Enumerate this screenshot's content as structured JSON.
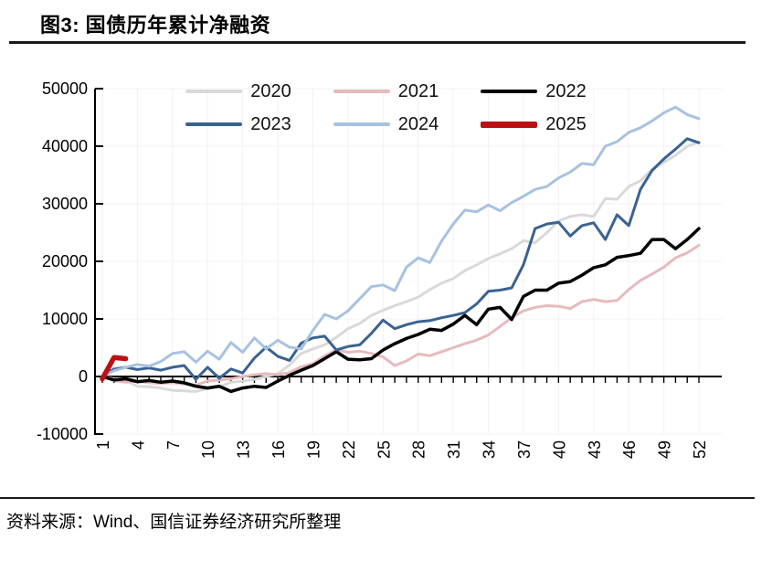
{
  "header": {
    "title": "图3: 国债历年累计净融资"
  },
  "footer": {
    "source": "资料来源：Wind、国信证券经济研究所整理"
  },
  "legend": {
    "columns": 3,
    "position": "top-center",
    "rows": 2
  },
  "chart_data": {
    "type": "line",
    "title": "国债历年累计净融资",
    "xlabel": "",
    "ylabel": "",
    "grid": "faint",
    "x_axis": {
      "weeks": 52,
      "tick_labels": [
        1,
        4,
        7,
        10,
        13,
        16,
        19,
        22,
        25,
        28,
        31,
        34,
        37,
        40,
        43,
        46,
        49,
        52
      ],
      "crosses_at": 0
    },
    "y_axis": {
      "ticks": [
        50000,
        40000,
        30000,
        20000,
        10000,
        0,
        -10000
      ],
      "min": -10000,
      "max": 50000
    },
    "series": [
      {
        "name": "2020",
        "color": "#d9d9d9",
        "line_width": 3,
        "legend_thickness": 3.5,
        "values": [
          0,
          -400,
          -700,
          -1700,
          -1800,
          -2000,
          -2400,
          -2500,
          -2600,
          -2100,
          -1800,
          -1000,
          -800,
          -500,
          0,
          500,
          2000,
          4000,
          4800,
          5500,
          6800,
          8300,
          9200,
          10600,
          11500,
          12300,
          13000,
          13800,
          15100,
          16200,
          17000,
          18400,
          19400,
          20500,
          21300,
          22200,
          23600,
          23200,
          25000,
          27000,
          27800,
          28100,
          27800,
          30900,
          30800,
          33000,
          34000,
          36000,
          37200,
          38400,
          40000,
          40700
        ]
      },
      {
        "name": "2021",
        "color": "#e7babd",
        "line_width": 3,
        "legend_thickness": 3.5,
        "values": [
          0,
          -700,
          -1000,
          -800,
          -1100,
          -1200,
          -1100,
          -1300,
          -1500,
          -800,
          -600,
          -400,
          0,
          300,
          500,
          300,
          700,
          1700,
          2200,
          3600,
          4600,
          4200,
          4400,
          4000,
          3400,
          1900,
          2700,
          3900,
          3600,
          4300,
          5000,
          5700,
          6300,
          7200,
          8700,
          10200,
          11400,
          12000,
          12300,
          12200,
          11800,
          13000,
          13400,
          13000,
          13200,
          15100,
          16700,
          17800,
          19000,
          20600,
          21500,
          22800
        ]
      },
      {
        "name": "2022",
        "color": "#000000",
        "line_width": 3.5,
        "legend_thickness": 4.5,
        "values": [
          0,
          -600,
          -400,
          -900,
          -700,
          -1000,
          -800,
          -1100,
          -1700,
          -2000,
          -1700,
          -2600,
          -2000,
          -1700,
          -1900,
          -800,
          200,
          1100,
          1900,
          3100,
          4300,
          3000,
          2900,
          3100,
          4600,
          5700,
          6600,
          7300,
          8200,
          8000,
          9100,
          10600,
          9000,
          11700,
          12000,
          9900,
          13900,
          15000,
          15000,
          16200,
          16500,
          17600,
          18900,
          19400,
          20700,
          21000,
          21400,
          23800,
          23800,
          22200,
          23800,
          25700
        ]
      },
      {
        "name": "2023",
        "color": "#3a6291",
        "line_width": 3,
        "legend_thickness": 4,
        "values": [
          0,
          1300,
          1600,
          1200,
          1500,
          1100,
          1600,
          1900,
          -500,
          1600,
          -300,
          1300,
          600,
          3200,
          5100,
          3500,
          2800,
          5800,
          6700,
          7000,
          4600,
          5200,
          5500,
          7500,
          9800,
          8300,
          9000,
          9500,
          9700,
          10200,
          10600,
          11100,
          12600,
          14800,
          15000,
          15400,
          19400,
          25700,
          26500,
          26800,
          24400,
          26200,
          26700,
          23800,
          28100,
          26200,
          32500,
          35800,
          37800,
          39500,
          41300,
          40600
        ]
      },
      {
        "name": "2024",
        "color": "#a7c2e0",
        "line_width": 3,
        "legend_thickness": 4,
        "values": [
          0,
          1000,
          1600,
          2100,
          1800,
          2600,
          4000,
          4300,
          2500,
          4400,
          3000,
          5900,
          4200,
          6700,
          4800,
          6300,
          5100,
          4800,
          8000,
          10800,
          10000,
          11400,
          13500,
          15600,
          15900,
          14900,
          19000,
          20600,
          19800,
          23500,
          26500,
          28900,
          28600,
          29800,
          28800,
          30200,
          31300,
          32500,
          33000,
          34500,
          35500,
          37000,
          36800,
          40000,
          40800,
          42400,
          43200,
          44400,
          45800,
          46800,
          45500,
          44800
        ]
      },
      {
        "name": "2025",
        "color": "#bb1114",
        "line_width": 5.5,
        "legend_thickness": 7,
        "values": [
          -400,
          3300,
          3100
        ]
      }
    ]
  }
}
